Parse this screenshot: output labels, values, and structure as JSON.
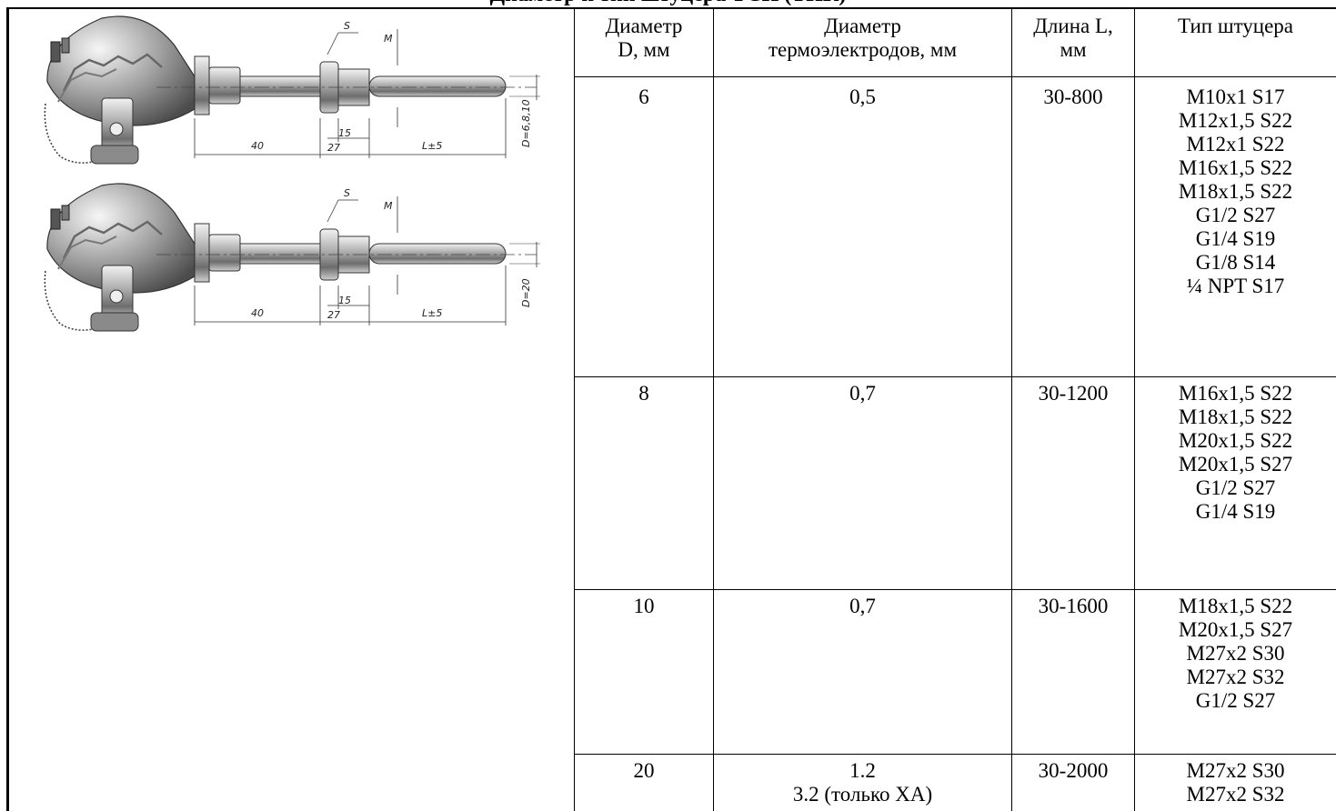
{
  "title": "Диаметр и тип штуцера ТСП (ТПК)",
  "table": {
    "headers": {
      "diameter": [
        "Диаметр",
        "D, мм"
      ],
      "electrodes": [
        "Диаметр",
        "термоэлектродов, мм"
      ],
      "length": [
        "Длина L,",
        "мм"
      ],
      "fitting": [
        "Тип штуцера"
      ]
    },
    "rows": [
      {
        "diameter": "6",
        "electrodes": [
          "0,5"
        ],
        "length": "30-800",
        "fittings": [
          "M10x1 S17",
          "M12x1,5 S22",
          "M12x1 S22",
          "M16x1,5 S22",
          "M18x1,5 S22",
          "G1/2 S27",
          "G1/4 S19",
          "G1/8 S14",
          "¼ NPT S17"
        ]
      },
      {
        "diameter": "8",
        "electrodes": [
          "0,7"
        ],
        "length": "30-1200",
        "fittings": [
          "M16x1,5 S22",
          "M18x1,5 S22",
          "M20x1,5 S22",
          "M20x1,5 S27",
          "G1/2 S27",
          "G1/4 S19"
        ]
      },
      {
        "diameter": "10",
        "electrodes": [
          "0,7"
        ],
        "length": "30-1600",
        "fittings": [
          "M18x1,5 S22",
          "M20x1,5 S27",
          "M27x2 S30",
          "M27x2 S32",
          "G1/2 S27"
        ]
      },
      {
        "diameter": "20",
        "electrodes": [
          "1.2",
          "3.2 (только ХА)"
        ],
        "length": "30-2000",
        "fittings": [
          "M27x2 S30",
          "M27x2 S32"
        ]
      }
    ]
  },
  "drawing": {
    "labels": {
      "s": "S",
      "m": "M",
      "d_top": "D=6,8,10",
      "d_bottom": "D=20",
      "dim_40": "40",
      "dim_27": "27",
      "dim_15": "15",
      "dim_l": "L±5"
    }
  }
}
